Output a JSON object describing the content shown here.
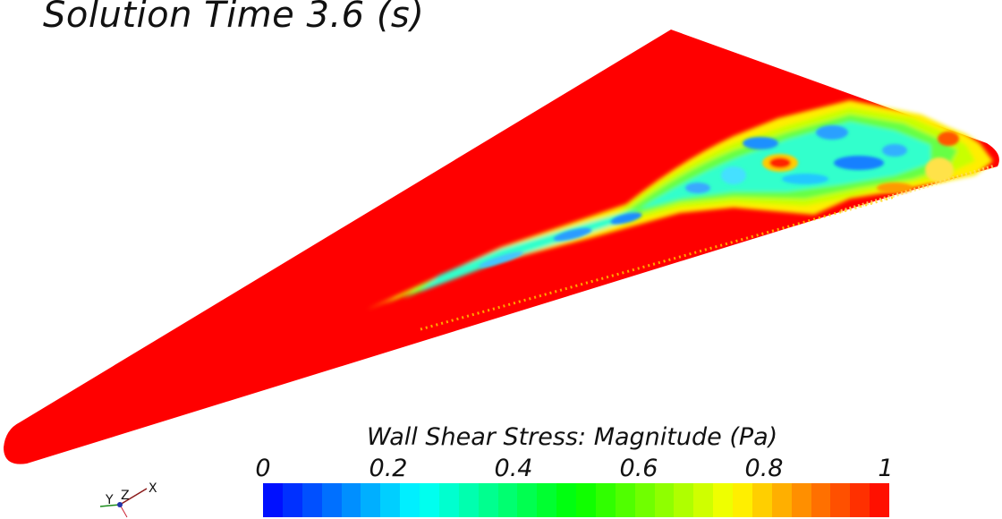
{
  "title": "Solution Time 3.6 (s)",
  "legend": {
    "label": "Wall Shear Stress: Magnitude (Pa)",
    "ticks": [
      "0",
      "0.2",
      "0.4",
      "0.6",
      "0.8",
      "1"
    ],
    "range": [
      0,
      1
    ],
    "segments": 32,
    "colormap": [
      "#0000ff",
      "#00ffff",
      "#00ff00",
      "#ffff00",
      "#ff0000"
    ]
  },
  "triad": {
    "x_label": "X",
    "y_label": "Y",
    "z_label": "Z"
  },
  "colors": {
    "surface": "#ff0000",
    "background": "#ffffff"
  }
}
